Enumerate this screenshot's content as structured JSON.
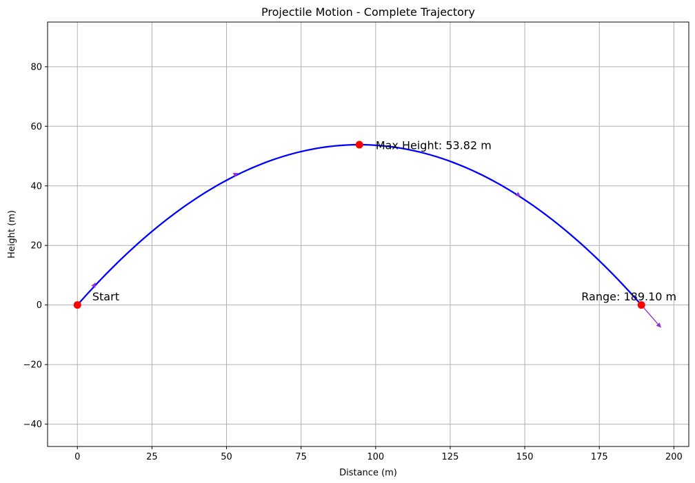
{
  "chart_data": {
    "type": "line",
    "title": "Projectile Motion - Complete Trajectory",
    "xlabel": "Distance (m)",
    "ylabel": "Height (m)",
    "xlim": [
      -10,
      205
    ],
    "ylim": [
      -47.5,
      95
    ],
    "xticks": [
      0,
      25,
      50,
      75,
      100,
      125,
      150,
      175,
      200
    ],
    "yticks": [
      -40,
      -20,
      0,
      20,
      40,
      60,
      80
    ],
    "grid": true,
    "series": [
      {
        "color": "#0000ff",
        "x": [
          0,
          10,
          20,
          30,
          40,
          50,
          60,
          70,
          80,
          90,
          94.55,
          100,
          110,
          120,
          130,
          140,
          150,
          160,
          170,
          180,
          189.1
        ],
        "y": [
          0,
          10.8,
          20.4,
          28.8,
          36.1,
          42.1,
          47.0,
          50.7,
          53.1,
          53.6,
          53.82,
          53.6,
          52.4,
          49.2,
          44.1,
          37.8,
          30.2,
          21.3,
          13.0,
          3.5,
          0
        ]
      }
    ],
    "markers": [
      {
        "name": "start-marker",
        "x": 0,
        "y": 0,
        "color": "#ff0000"
      },
      {
        "name": "max-height-marker",
        "x": 94.55,
        "y": 53.82,
        "color": "#ff0000"
      },
      {
        "name": "range-marker",
        "x": 189.1,
        "y": 0,
        "color": "#ff0000"
      }
    ],
    "annotations": [
      {
        "name": "start-annotation",
        "text": "Start",
        "x": 5,
        "y": 1.5
      },
      {
        "name": "max-height-annotation",
        "text": "Max Height: 53.82 m",
        "x": 100,
        "y": 52.3
      },
      {
        "name": "range-annotation",
        "text": "Range: 189.10 m",
        "x": 169,
        "y": 1.5
      }
    ],
    "velocity_arrows": {
      "color": "#9932cc",
      "items": [
        {
          "x": 5.5,
          "y": 6.4,
          "dx": 0.5,
          "dy": 1.0
        },
        {
          "x": 52.8,
          "y": 43.8,
          "dx": 1.0,
          "dy": 0.4
        },
        {
          "x": 147.5,
          "y": 37.2,
          "dx": 1.0,
          "dy": -0.7
        },
        {
          "x": 189.1,
          "y": 0,
          "dx": 6.5,
          "dy": -7.5
        }
      ]
    }
  }
}
